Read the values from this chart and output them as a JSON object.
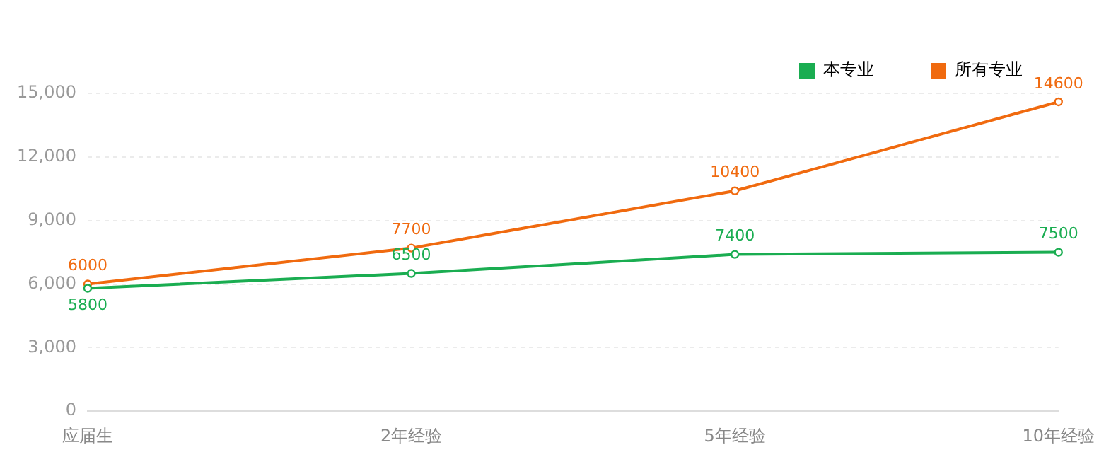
{
  "chart_data": {
    "type": "line",
    "categories": [
      "应届生",
      "2年经验",
      "5年经验",
      "10年经验"
    ],
    "series": [
      {
        "name": "本专业",
        "color": "#1aad51",
        "values": [
          5800,
          6500,
          7400,
          7500
        ]
      },
      {
        "name": "所有专业",
        "color": "#f06a0f",
        "values": [
          6000,
          7700,
          10400,
          14600
        ]
      }
    ],
    "ylim": [
      0,
      15000
    ],
    "yticks": [
      0,
      {
        "value": 3000,
        "label": "3,000"
      },
      {
        "value": 6000,
        "label": "6,000"
      },
      {
        "value": 9000,
        "label": "9,000"
      },
      {
        "value": 12000,
        "label": "12,000"
      },
      {
        "value": 15000,
        "label": "15,000"
      }
    ],
    "grid": "y",
    "legend": "top right",
    "data_labels": true,
    "marker": "circle"
  }
}
